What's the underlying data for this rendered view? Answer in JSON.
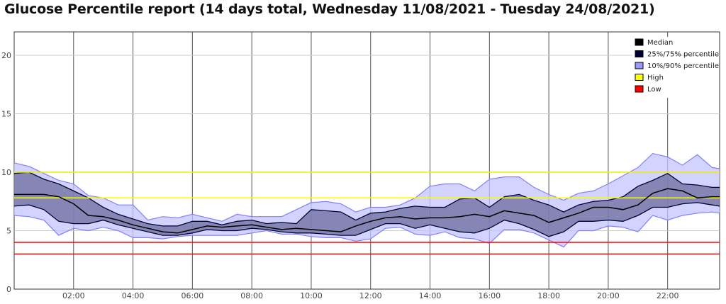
{
  "chart_data": {
    "type": "area",
    "title": "Glucose Percentile report (14 days total, Wednesday 11/08/2021 - Tuesday 24/08/2021)",
    "xlabel": "",
    "ylabel": "",
    "xlim": [
      0,
      23.75
    ],
    "ylim": [
      0,
      22
    ],
    "grid": true,
    "legend_position": "top-right",
    "x": [
      0,
      0.5,
      1,
      1.5,
      2,
      2.5,
      3,
      3.5,
      4,
      4.5,
      5,
      5.5,
      6,
      6.5,
      7,
      7.5,
      8,
      8.5,
      9,
      9.5,
      10,
      10.5,
      11,
      11.5,
      12,
      12.5,
      13,
      13.5,
      14,
      14.5,
      15,
      15.5,
      16,
      16.5,
      17,
      17.5,
      18,
      18.5,
      19,
      19.5,
      20,
      20.5,
      21,
      21.5,
      22,
      22.5,
      23,
      23.5,
      23.75
    ],
    "xticks": [
      {
        "value": 2,
        "label": "02:00"
      },
      {
        "value": 4,
        "label": "04:00"
      },
      {
        "value": 6,
        "label": "06:00"
      },
      {
        "value": 8,
        "label": "08:00"
      },
      {
        "value": 10,
        "label": "10:00"
      },
      {
        "value": 12,
        "label": "12:00"
      },
      {
        "value": 14,
        "label": "14:00"
      },
      {
        "value": 16,
        "label": "16:00"
      },
      {
        "value": 18,
        "label": "18:00"
      },
      {
        "value": 20,
        "label": "20:00"
      },
      {
        "value": 22,
        "label": "22:00"
      }
    ],
    "yticks": [
      {
        "value": 0,
        "label": "0"
      },
      {
        "value": 5,
        "label": "5"
      },
      {
        "value": 10,
        "label": "10"
      },
      {
        "value": 15,
        "label": "15"
      },
      {
        "value": 20,
        "label": "20"
      }
    ],
    "series": [
      {
        "name": "Median",
        "color": "#000000",
        "values": [
          8.1,
          8.1,
          8.1,
          7.9,
          7.3,
          6.3,
          6.2,
          5.9,
          5.5,
          5.2,
          4.9,
          4.8,
          5.1,
          5.4,
          5.3,
          5.4,
          5.5,
          5.3,
          5.1,
          5.2,
          5.1,
          5.0,
          4.9,
          5.4,
          5.8,
          6.1,
          6.2,
          6.0,
          6.1,
          6.1,
          6.2,
          6.4,
          6.2,
          6.7,
          6.5,
          6.3,
          5.7,
          6.1,
          6.5,
          7.0,
          7.0,
          6.8,
          7.2,
          8.2,
          8.6,
          8.4,
          7.8,
          7.9,
          7.9
        ]
      },
      {
        "name": "25%/75% percentile",
        "color": "#000033",
        "fill": "#6b6b9e",
        "lower": [
          7.1,
          7.2,
          6.8,
          5.8,
          5.6,
          5.6,
          5.9,
          5.5,
          5.2,
          4.9,
          4.6,
          4.6,
          4.8,
          5.1,
          5.0,
          5.0,
          5.2,
          5.1,
          4.9,
          4.8,
          4.8,
          4.7,
          4.6,
          4.6,
          5.1,
          5.6,
          5.6,
          5.2,
          5.5,
          5.2,
          4.9,
          4.8,
          5.2,
          5.9,
          5.6,
          5.1,
          4.5,
          4.9,
          5.8,
          5.8,
          5.9,
          5.8,
          6.3,
          7.0,
          7.0,
          7.3,
          7.4,
          7.2,
          7.1
        ],
        "upper": [
          9.9,
          10.0,
          9.4,
          9.0,
          8.4,
          7.8,
          7.0,
          6.4,
          6.0,
          5.6,
          5.4,
          5.4,
          5.8,
          5.8,
          5.5,
          5.8,
          5.9,
          5.6,
          5.7,
          5.6,
          6.8,
          6.7,
          6.6,
          5.9,
          6.5,
          6.6,
          6.9,
          7.1,
          7.0,
          7.0,
          7.7,
          7.8,
          7.0,
          7.9,
          8.1,
          7.6,
          7.2,
          6.6,
          7.2,
          7.5,
          7.6,
          7.9,
          8.8,
          9.3,
          9.9,
          9.0,
          8.9,
          8.7,
          8.7
        ]
      },
      {
        "name": "10%/90% percentile",
        "color": "#8080ff",
        "fill": "#c4c4ff",
        "lower": [
          6.3,
          6.2,
          5.9,
          4.6,
          5.2,
          5.0,
          5.3,
          5.0,
          4.4,
          4.4,
          4.3,
          4.5,
          4.6,
          4.6,
          4.6,
          4.6,
          4.8,
          5.0,
          4.7,
          4.7,
          4.5,
          4.4,
          4.4,
          4.1,
          4.3,
          5.2,
          5.3,
          4.7,
          4.6,
          4.9,
          4.4,
          4.3,
          3.9,
          5.1,
          5.1,
          4.8,
          4.2,
          3.6,
          5.0,
          5.0,
          5.4,
          5.3,
          4.9,
          6.3,
          5.9,
          6.3,
          6.5,
          6.6,
          6.5
        ],
        "upper": [
          10.8,
          10.5,
          9.9,
          9.3,
          9.0,
          8.0,
          7.8,
          7.2,
          7.2,
          5.9,
          6.2,
          6.1,
          6.4,
          6.1,
          5.8,
          6.4,
          6.2,
          6.2,
          6.2,
          6.8,
          7.4,
          7.5,
          7.3,
          6.6,
          7.0,
          7.0,
          7.2,
          7.8,
          8.8,
          9.0,
          9.0,
          8.4,
          9.4,
          9.6,
          9.6,
          8.7,
          8.1,
          7.6,
          8.2,
          8.4,
          9.0,
          9.7,
          10.4,
          11.6,
          11.3,
          10.6,
          11.5,
          10.4,
          10.3
        ]
      }
    ],
    "reference_lines": [
      {
        "name": "High",
        "color": "#ffff00",
        "values": [
          7.8
        ]
      },
      {
        "name": "Low",
        "color": "#ff0000",
        "values": [
          4.0
        ]
      },
      {
        "name": "",
        "color": "#eeee00",
        "values": [
          10.0
        ]
      },
      {
        "name": "",
        "color": "#dd0000",
        "values": [
          3.0
        ]
      }
    ],
    "legend": [
      {
        "label": "Median",
        "swatch": "#000000"
      },
      {
        "label": "25%/75% percentile",
        "swatch": "#000033"
      },
      {
        "label": "10%/90% percentile",
        "swatch": "#9999ff"
      },
      {
        "label": "High",
        "swatch": "#ffff00"
      },
      {
        "label": "Low",
        "swatch": "#ff0000"
      }
    ]
  }
}
